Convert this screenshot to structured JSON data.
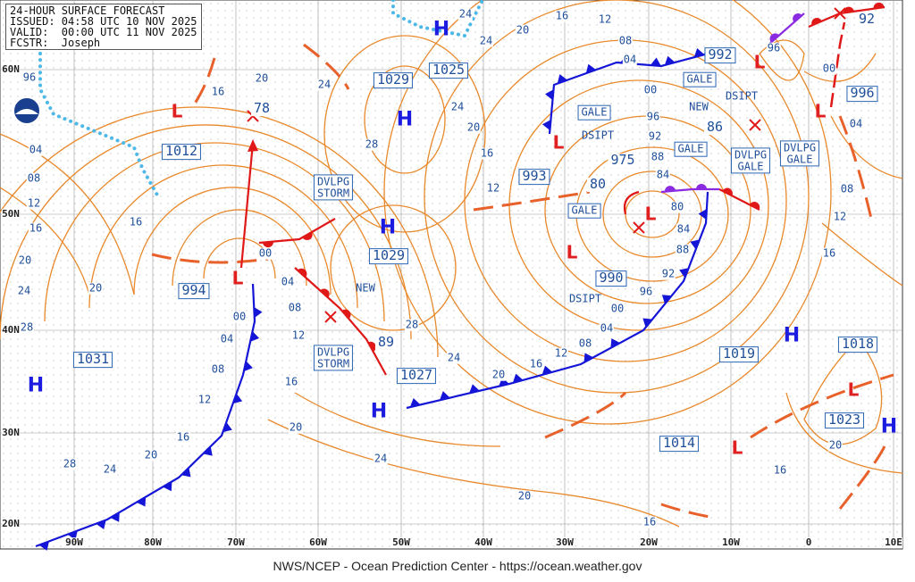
{
  "header": {
    "title": "24-HOUR SURFACE FORECAST",
    "issued": "ISSUED: 04:58 UTC 10 NOV 2025",
    "valid": "VALID:  00:00 UTC 11 NOV 2025",
    "forecaster": "FCSTR:  Joseph"
  },
  "map": {
    "longitude_labels": [
      "90W",
      "80W",
      "70W",
      "60W",
      "50W",
      "40W",
      "30W",
      "20W",
      "10W",
      "0",
      "10E"
    ],
    "latitude_labels": [
      "60N",
      "50N",
      "40N",
      "30N",
      "20N"
    ],
    "pressure_labels": [
      "1029",
      "78",
      "1012",
      "1025",
      "992",
      "996",
      "86",
      "975",
      "993",
      "80",
      "994",
      "990",
      "1029",
      "89",
      "1027",
      "1031",
      "1019",
      "1018",
      "1023",
      "1014",
      "92"
    ],
    "annotations": [
      "DVLPG STORM",
      "DVLPG STORM",
      "GALE",
      "GALE",
      "GALE",
      "GALE",
      "DVLPG GALE",
      "DVLPG GALE"
    ],
    "plain_labels": [
      "DSIPT",
      "DSIPT",
      "DSIPT",
      "NEW",
      "NEW"
    ],
    "isobar_labels": [
      "96",
      "04",
      "08",
      "12",
      "16",
      "20",
      "24",
      "28",
      "16",
      "20",
      "24",
      "28",
      "16",
      "20",
      "00",
      "04",
      "08",
      "12",
      "16",
      "20",
      "24",
      "28",
      "00",
      "04",
      "08",
      "12",
      "16",
      "20",
      "24",
      "20",
      "16",
      "28",
      "24",
      "20",
      "16",
      "12",
      "08",
      "04",
      "00",
      "96",
      "92",
      "88",
      "84",
      "80",
      "84",
      "88",
      "92",
      "96",
      "00",
      "04",
      "08",
      "12",
      "16",
      "20",
      "24",
      "20",
      "24",
      "16",
      "12",
      "24",
      "96",
      "00",
      "04",
      "08",
      "12",
      "16",
      "20",
      "16"
    ],
    "highs": [
      "H",
      "H",
      "H",
      "H",
      "H",
      "H",
      "H"
    ],
    "lows": [
      "L",
      "L",
      "L",
      "L",
      "L",
      "L",
      "L",
      "L",
      "L"
    ]
  },
  "footer": "NWS/NCEP - Ocean Prediction Center - https://ocean.weather.gov"
}
